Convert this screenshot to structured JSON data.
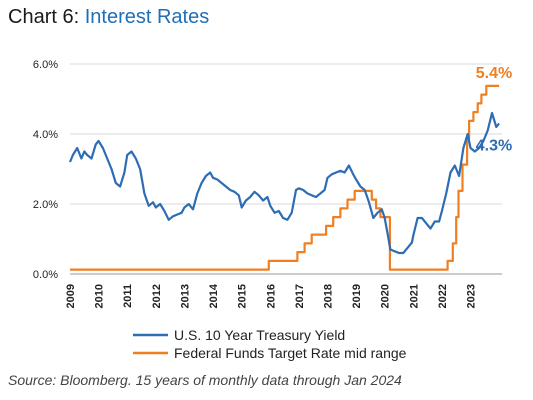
{
  "title": {
    "prefix": "Chart 6:",
    "name": "Interest Rates"
  },
  "source": "Source: Bloomberg. 15 years of monthly data through Jan 2024",
  "chart_data": {
    "type": "line",
    "yticks": [
      "0.0%",
      "2.0%",
      "4.0%",
      "6.0%"
    ],
    "ylim": [
      0,
      6
    ],
    "xticks": [
      "2009",
      "2010",
      "2011",
      "2012",
      "2013",
      "2014",
      "2015",
      "2016",
      "2017",
      "2018",
      "2019",
      "2020",
      "2021",
      "2022",
      "2023"
    ],
    "xlim": [
      2009,
      2024.1
    ],
    "grid": true,
    "legend_position": "bottom",
    "series": [
      {
        "name": "U.S. 10 Year Treasury Yield",
        "color": "#2e6db4",
        "end_label": "4.3%",
        "x": [
          2009.0,
          2009.1,
          2009.25,
          2009.4,
          2009.5,
          2009.6,
          2009.75,
          2009.9,
          2010.0,
          2010.15,
          2010.3,
          2010.45,
          2010.6,
          2010.75,
          2010.9,
          2011.0,
          2011.15,
          2011.3,
          2011.45,
          2011.6,
          2011.75,
          2011.9,
          2012.0,
          2012.15,
          2012.3,
          2012.45,
          2012.6,
          2012.75,
          2012.9,
          2013.0,
          2013.15,
          2013.3,
          2013.45,
          2013.6,
          2013.75,
          2013.9,
          2014.0,
          2014.15,
          2014.3,
          2014.45,
          2014.6,
          2014.75,
          2014.9,
          2015.0,
          2015.15,
          2015.3,
          2015.45,
          2015.6,
          2015.75,
          2015.9,
          2016.0,
          2016.15,
          2016.3,
          2016.45,
          2016.6,
          2016.75,
          2016.9,
          2017.0,
          2017.15,
          2017.3,
          2017.45,
          2017.6,
          2017.75,
          2017.9,
          2018.0,
          2018.15,
          2018.3,
          2018.45,
          2018.6,
          2018.75,
          2018.9,
          2019.0,
          2019.15,
          2019.3,
          2019.45,
          2019.6,
          2019.75,
          2019.9,
          2020.0,
          2020.1,
          2020.2,
          2020.35,
          2020.5,
          2020.65,
          2020.8,
          2020.95,
          2021.0,
          2021.15,
          2021.3,
          2021.45,
          2021.6,
          2021.75,
          2021.9,
          2022.0,
          2022.15,
          2022.3,
          2022.45,
          2022.6,
          2022.75,
          2022.9,
          2023.0,
          2023.15,
          2023.3,
          2023.45,
          2023.6,
          2023.75,
          2023.9,
          2024.0
        ],
        "values": [
          3.2,
          3.4,
          3.6,
          3.3,
          3.5,
          3.4,
          3.3,
          3.7,
          3.8,
          3.6,
          3.3,
          3.0,
          2.6,
          2.5,
          2.9,
          3.4,
          3.5,
          3.3,
          3.0,
          2.3,
          1.95,
          2.05,
          1.9,
          2.0,
          1.8,
          1.55,
          1.65,
          1.7,
          1.75,
          1.9,
          2.0,
          1.85,
          2.3,
          2.6,
          2.8,
          2.9,
          2.75,
          2.7,
          2.6,
          2.5,
          2.4,
          2.35,
          2.25,
          1.9,
          2.1,
          2.2,
          2.35,
          2.25,
          2.1,
          2.2,
          1.95,
          1.75,
          1.8,
          1.6,
          1.55,
          1.75,
          2.4,
          2.45,
          2.4,
          2.3,
          2.25,
          2.2,
          2.3,
          2.4,
          2.75,
          2.85,
          2.9,
          2.95,
          2.9,
          3.1,
          2.85,
          2.7,
          2.5,
          2.4,
          2.05,
          1.6,
          1.75,
          1.85,
          1.6,
          1.15,
          0.7,
          0.65,
          0.6,
          0.6,
          0.75,
          0.9,
          1.1,
          1.6,
          1.6,
          1.45,
          1.3,
          1.5,
          1.5,
          1.8,
          2.3,
          2.9,
          3.1,
          2.8,
          3.6,
          4.0,
          3.6,
          3.5,
          3.6,
          3.8,
          4.1,
          4.6,
          4.2,
          4.3
        ]
      },
      {
        "name": "Federal Funds Target Rate mid range",
        "color": "#f07f22",
        "end_label": "5.4%",
        "x": [
          2009.0,
          2015.95,
          2015.95,
          2016.95,
          2016.95,
          2017.2,
          2017.2,
          2017.45,
          2017.45,
          2017.95,
          2017.95,
          2018.2,
          2018.2,
          2018.45,
          2018.45,
          2018.7,
          2018.7,
          2018.95,
          2018.95,
          2019.55,
          2019.55,
          2019.7,
          2019.7,
          2019.85,
          2019.85,
          2020.18,
          2020.18,
          2022.2,
          2022.2,
          2022.38,
          2022.38,
          2022.5,
          2022.5,
          2022.58,
          2022.58,
          2022.72,
          2022.72,
          2022.88,
          2022.88,
          2022.95,
          2022.95,
          2023.1,
          2023.1,
          2023.25,
          2023.25,
          2023.38,
          2023.38,
          2023.55,
          2023.55,
          2024.0
        ],
        "values": [
          0.125,
          0.125,
          0.375,
          0.375,
          0.625,
          0.625,
          0.875,
          0.875,
          1.125,
          1.125,
          1.375,
          1.375,
          1.625,
          1.625,
          1.875,
          1.875,
          2.125,
          2.125,
          2.375,
          2.375,
          2.125,
          2.125,
          1.875,
          1.875,
          1.625,
          1.625,
          0.125,
          0.125,
          0.375,
          0.375,
          0.875,
          0.875,
          1.625,
          1.625,
          2.375,
          2.375,
          3.125,
          3.125,
          3.875,
          3.875,
          4.375,
          4.375,
          4.625,
          4.625,
          4.875,
          4.875,
          5.125,
          5.125,
          5.375,
          5.375
        ]
      }
    ]
  }
}
